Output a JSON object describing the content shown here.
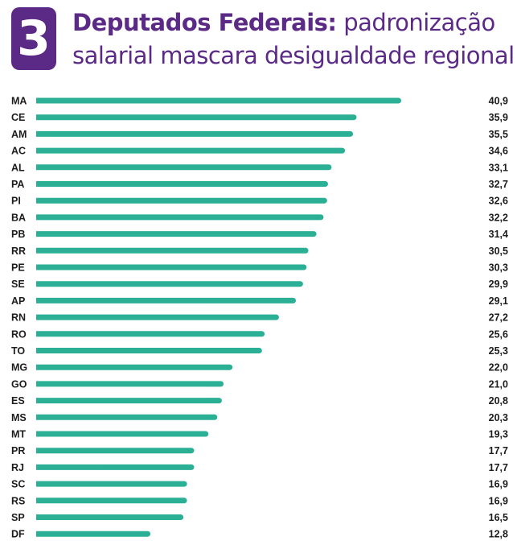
{
  "header": {
    "number": "3",
    "title_bold": "Deputados Federais:",
    "title_line1_rest": "padronização",
    "title_line2": "salarial mascara desigualdade regional"
  },
  "colors": {
    "accent": "#5b2a86",
    "bar": "#2bb096",
    "text": "#1c1c1c"
  },
  "chart_data": {
    "type": "bar",
    "orientation": "horizontal",
    "title": "Deputados Federais: padronização salarial mascara desigualdade regional",
    "xlabel": "",
    "ylabel": "",
    "xlim": [
      0,
      40.9
    ],
    "grid": false,
    "legend": "none",
    "categories": [
      "MA",
      "CE",
      "AM",
      "AC",
      "AL",
      "PA",
      "PI",
      "BA",
      "PB",
      "RR",
      "PE",
      "SE",
      "AP",
      "RN",
      "RO",
      "TO",
      "MG",
      "GO",
      "ES",
      "MS",
      "MT",
      "PR",
      "RJ",
      "SC",
      "RS",
      "SP",
      "DF"
    ],
    "values": [
      40.9,
      35.9,
      35.5,
      34.6,
      33.1,
      32.7,
      32.6,
      32.2,
      31.4,
      30.5,
      30.3,
      29.9,
      29.1,
      27.2,
      25.6,
      25.3,
      22.0,
      21.0,
      20.8,
      20.3,
      19.3,
      17.7,
      17.7,
      16.9,
      16.9,
      16.5,
      12.8
    ],
    "value_labels": [
      "40,9",
      "35,9",
      "35,5",
      "34,6",
      "33,1",
      "32,7",
      "32,6",
      "32,2",
      "31,4",
      "30,5",
      "30,3",
      "29,9",
      "29,1",
      "27,2",
      "25,6",
      "25,3",
      "22,0",
      "21,0",
      "20,8",
      "20,3",
      "19,3",
      "17,7",
      "17,7",
      "16,9",
      "16,9",
      "16,5",
      "12,8"
    ]
  }
}
